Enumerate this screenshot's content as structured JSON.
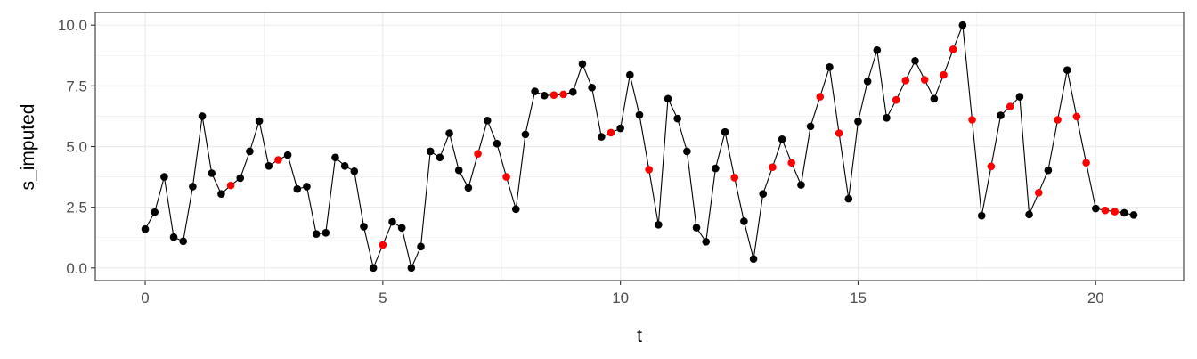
{
  "chart_data": {
    "type": "line",
    "title": "",
    "xlabel": "t",
    "ylabel": "s_imputed",
    "xlim": [
      -1.05,
      21.85
    ],
    "ylim": [
      -0.52,
      10.52
    ],
    "x_ticks": [
      0,
      5,
      10,
      15,
      20
    ],
    "x_tick_labels": [
      "0",
      "5",
      "10",
      "15",
      "20"
    ],
    "y_ticks": [
      0,
      2.5,
      5,
      7.5,
      10
    ],
    "y_tick_labels": [
      "0.0",
      "2.5",
      "5.0",
      "7.5",
      "10.0"
    ],
    "grid": true,
    "colors": {
      "observed": "#000000",
      "imputed": "#ff0000",
      "line": "#000000",
      "grid": "#ebebeb",
      "border": "#333333"
    },
    "series": [
      {
        "x": [
          0,
          0.2,
          0.4,
          0.6,
          0.8,
          1.0,
          1.2,
          1.4,
          1.6,
          1.8,
          2.0,
          2.2,
          2.4,
          2.6,
          2.8,
          3.0,
          3.2,
          3.4,
          3.6,
          3.8,
          4.0,
          4.2,
          4.4,
          4.6,
          4.8,
          5.0,
          5.2,
          5.4,
          5.6,
          5.8,
          6.0,
          6.2,
          6.4,
          6.6,
          6.8,
          7.0,
          7.2,
          7.4,
          7.6,
          7.8,
          8.0,
          8.2,
          8.4,
          8.6,
          8.8,
          9.0,
          9.2,
          9.4,
          9.6,
          9.8,
          10.0,
          10.2,
          10.4,
          10.6,
          10.8,
          11.0,
          11.2,
          11.4,
          11.6,
          11.8,
          12.0,
          12.2,
          12.4,
          12.6,
          12.8,
          13.0,
          13.2,
          13.4,
          13.6,
          13.8,
          14.0,
          14.2,
          14.4,
          14.6,
          14.8,
          15.0,
          15.2,
          15.4,
          15.6,
          15.8,
          16.0,
          16.2,
          16.4,
          16.6,
          16.8,
          17.0,
          17.2,
          17.4,
          17.6,
          17.8,
          18.0,
          18.2,
          18.4,
          18.6,
          18.8,
          19.0,
          19.2,
          19.4,
          19.6,
          19.8,
          20.0,
          20.2,
          20.4,
          20.6,
          20.8
        ],
        "y": [
          1.6,
          2.3,
          3.75,
          1.27,
          1.1,
          3.35,
          6.25,
          3.9,
          3.05,
          3.4,
          3.7,
          4.8,
          6.05,
          4.2,
          4.45,
          4.65,
          3.25,
          3.35,
          1.4,
          1.45,
          4.55,
          4.2,
          3.98,
          1.7,
          0.0,
          0.95,
          1.9,
          1.65,
          0.0,
          0.88,
          4.8,
          4.55,
          5.55,
          4.02,
          3.3,
          4.7,
          6.07,
          5.12,
          3.75,
          2.42,
          5.5,
          7.27,
          7.1,
          7.12,
          7.15,
          7.25,
          8.4,
          7.43,
          5.4,
          5.57,
          5.75,
          7.95,
          6.3,
          4.05,
          1.78,
          6.97,
          6.15,
          4.8,
          1.66,
          1.08,
          4.1,
          5.6,
          3.72,
          1.92,
          0.37,
          3.05,
          4.15,
          5.3,
          4.33,
          3.42,
          5.83,
          7.05,
          8.27,
          5.55,
          2.85,
          6.03,
          7.68,
          8.97,
          6.18,
          6.92,
          7.72,
          8.53,
          7.75,
          6.97,
          7.95,
          9.0,
          10.0,
          6.1,
          2.15,
          4.18,
          6.28,
          6.65,
          7.05,
          2.2,
          3.1,
          4.02,
          6.1,
          8.15,
          6.23,
          4.33,
          2.45,
          2.37,
          2.32,
          2.27,
          2.18
        ],
        "imputed": [
          false,
          false,
          false,
          false,
          false,
          false,
          false,
          false,
          false,
          true,
          false,
          false,
          false,
          false,
          true,
          false,
          false,
          false,
          false,
          false,
          false,
          false,
          false,
          false,
          false,
          true,
          false,
          false,
          false,
          false,
          false,
          false,
          false,
          false,
          false,
          true,
          false,
          false,
          true,
          false,
          false,
          false,
          false,
          true,
          true,
          false,
          false,
          false,
          false,
          true,
          false,
          false,
          false,
          true,
          false,
          false,
          false,
          false,
          false,
          false,
          false,
          false,
          true,
          false,
          false,
          false,
          true,
          false,
          true,
          false,
          false,
          true,
          false,
          true,
          false,
          false,
          false,
          false,
          false,
          true,
          true,
          false,
          true,
          false,
          true,
          true,
          false,
          true,
          false,
          true,
          false,
          true,
          false,
          false,
          true,
          false,
          true,
          false,
          true,
          true,
          false,
          true,
          true,
          false,
          false
        ]
      }
    ]
  }
}
